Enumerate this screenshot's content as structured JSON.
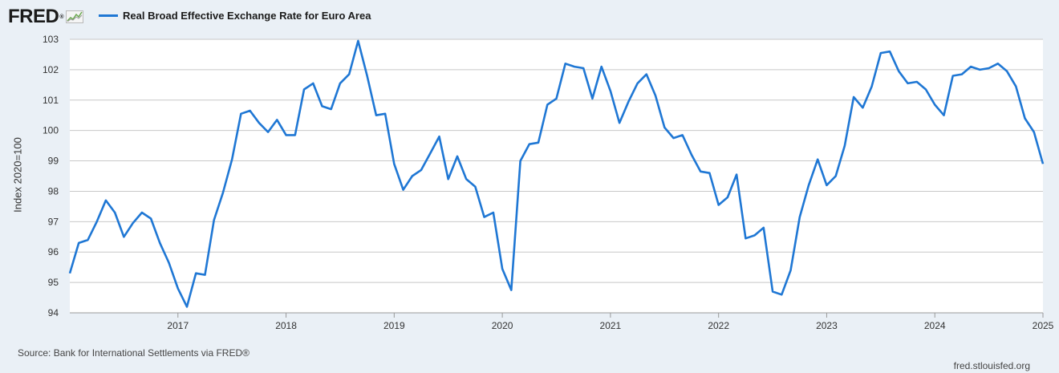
{
  "header": {
    "logo_text": "FRED",
    "logo_mark": "®",
    "logo_icon": "fred-chart-logo-icon"
  },
  "legend": {
    "label": "Real Broad Effective Exchange Rate for Euro Area"
  },
  "footer": {
    "source": "Source: Bank for International Settlements via FRED®",
    "site": "fred.stlouisfed.org"
  },
  "colors": {
    "line": "#1f77d4",
    "grid": "#c8c8c8",
    "plot_bg": "#ffffff",
    "page_bg": "#eaf0f6"
  },
  "chart_data": {
    "type": "line",
    "title": "",
    "xlabel": "",
    "ylabel": "Index 2020=100",
    "ylim": [
      94,
      103
    ],
    "xlim": [
      "2016-01",
      "2025-01"
    ],
    "yticks": [
      94,
      95,
      96,
      97,
      98,
      99,
      100,
      101,
      102,
      103
    ],
    "xticks": [
      "2017",
      "2018",
      "2019",
      "2020",
      "2021",
      "2022",
      "2023",
      "2024",
      "2025"
    ],
    "grid": true,
    "legend_position": "top-left",
    "series": [
      {
        "name": "Real Broad Effective Exchange Rate for Euro Area",
        "x": [
          "2016-01",
          "2016-02",
          "2016-03",
          "2016-04",
          "2016-05",
          "2016-06",
          "2016-07",
          "2016-08",
          "2016-09",
          "2016-10",
          "2016-11",
          "2016-12",
          "2017-01",
          "2017-02",
          "2017-03",
          "2017-04",
          "2017-05",
          "2017-06",
          "2017-07",
          "2017-08",
          "2017-09",
          "2017-10",
          "2017-11",
          "2017-12",
          "2018-01",
          "2018-02",
          "2018-03",
          "2018-04",
          "2018-05",
          "2018-06",
          "2018-07",
          "2018-08",
          "2018-09",
          "2018-10",
          "2018-11",
          "2018-12",
          "2019-01",
          "2019-02",
          "2019-03",
          "2019-04",
          "2019-05",
          "2019-06",
          "2019-07",
          "2019-08",
          "2019-09",
          "2019-10",
          "2019-11",
          "2019-12",
          "2020-01",
          "2020-02",
          "2020-03",
          "2020-04",
          "2020-05",
          "2020-06",
          "2020-07",
          "2020-08",
          "2020-09",
          "2020-10",
          "2020-11",
          "2020-12",
          "2021-01",
          "2021-02",
          "2021-03",
          "2021-04",
          "2021-05",
          "2021-06",
          "2021-07",
          "2021-08",
          "2021-09",
          "2021-10",
          "2021-11",
          "2021-12",
          "2022-01",
          "2022-02",
          "2022-03",
          "2022-04",
          "2022-05",
          "2022-06",
          "2022-07",
          "2022-08",
          "2022-09",
          "2022-10",
          "2022-11",
          "2022-12",
          "2023-01",
          "2023-02",
          "2023-03",
          "2023-04",
          "2023-05",
          "2023-06",
          "2023-07",
          "2023-08",
          "2023-09",
          "2023-10",
          "2023-11",
          "2023-12",
          "2024-01",
          "2024-02",
          "2024-03",
          "2024-04",
          "2024-05",
          "2024-06",
          "2024-07",
          "2024-08",
          "2024-09",
          "2024-10",
          "2024-11",
          "2024-12",
          "2025-01"
        ],
        "values": [
          95.3,
          96.3,
          96.4,
          97.0,
          97.7,
          97.3,
          96.5,
          96.95,
          97.3,
          97.1,
          96.3,
          95.65,
          94.8,
          94.2,
          95.3,
          95.25,
          97.05,
          97.95,
          99.05,
          100.55,
          100.65,
          100.25,
          99.95,
          100.35,
          99.85,
          99.85,
          101.35,
          101.55,
          100.8,
          100.7,
          101.55,
          101.85,
          102.95,
          101.8,
          100.5,
          100.55,
          98.9,
          98.05,
          98.5,
          98.7,
          99.25,
          99.8,
          98.4,
          99.15,
          98.4,
          98.15,
          97.15,
          97.3,
          95.45,
          94.75,
          99.0,
          99.55,
          99.6,
          100.85,
          101.05,
          102.2,
          102.1,
          102.05,
          101.05,
          102.1,
          101.3,
          100.25,
          100.95,
          101.55,
          101.85,
          101.15,
          100.1,
          99.75,
          99.85,
          99.2,
          98.65,
          98.6,
          97.55,
          97.8,
          98.55,
          96.45,
          96.55,
          96.8,
          94.7,
          94.6,
          95.4,
          97.15,
          98.2,
          99.05,
          98.2,
          98.5,
          99.5,
          101.1,
          100.75,
          101.45,
          102.55,
          102.6,
          101.95,
          101.55,
          101.6,
          101.35,
          100.85,
          100.5,
          101.8,
          101.85,
          102.1,
          102.0,
          102.05,
          102.2,
          101.95,
          101.45,
          100.4,
          99.95,
          98.9
        ]
      }
    ]
  }
}
